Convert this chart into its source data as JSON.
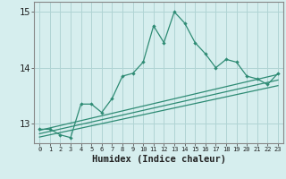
{
  "xlabel": "Humidex (Indice chaleur)",
  "x_values": [
    0,
    1,
    2,
    3,
    4,
    5,
    6,
    7,
    8,
    9,
    10,
    11,
    12,
    13,
    14,
    15,
    16,
    17,
    18,
    19,
    20,
    21,
    22,
    23
  ],
  "main_line": [
    12.9,
    12.9,
    12.8,
    12.75,
    13.35,
    13.35,
    13.2,
    13.45,
    13.85,
    13.9,
    14.1,
    14.75,
    14.45,
    15.0,
    14.8,
    14.45,
    14.25,
    14.0,
    14.15,
    14.1,
    13.85,
    13.8,
    13.7,
    13.9
  ],
  "line_color": "#2e8b74",
  "bg_color": "#d6eeee",
  "grid_color": "#b0d4d4",
  "xlim": [
    -0.5,
    23.5
  ],
  "ylim": [
    12.65,
    15.18
  ],
  "yticks": [
    13,
    14,
    15
  ],
  "lin1_start": 12.88,
  "lin1_end": 13.88,
  "lin2_start": 12.82,
  "lin2_end": 13.78,
  "lin3_start": 12.76,
  "lin3_end": 13.68
}
